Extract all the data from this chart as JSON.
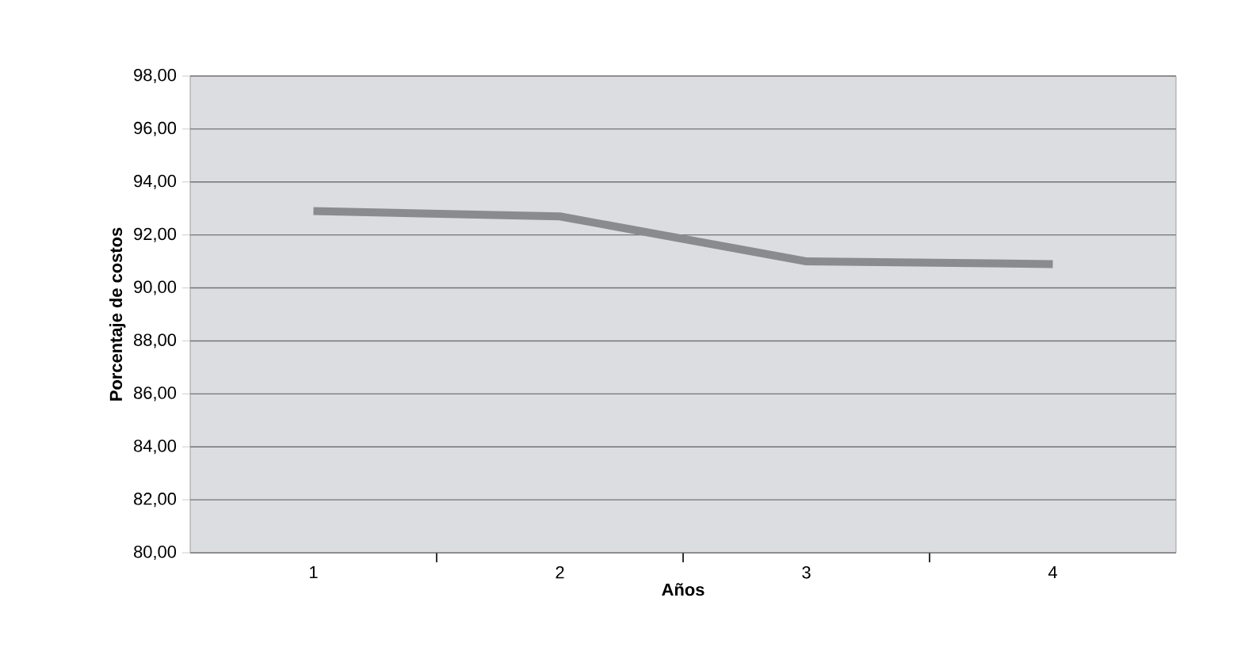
{
  "chart_data": {
    "type": "line",
    "xlabel": "Años",
    "ylabel": "Porcentaje de costos",
    "categories": [
      "1",
      "2",
      "3",
      "4"
    ],
    "series": [
      {
        "color": "#8a8b8e",
        "values": [
          92.9,
          92.7,
          91.0,
          90.9
        ]
      }
    ],
    "ylim": [
      80,
      98
    ],
    "yticks": [
      {
        "value": 80,
        "label": "80,00"
      },
      {
        "value": 82,
        "label": "82,00"
      },
      {
        "value": 84,
        "label": "84,00"
      },
      {
        "value": 86,
        "label": "86,00"
      },
      {
        "value": 88,
        "label": "88,00"
      },
      {
        "value": 90,
        "label": "90,00"
      },
      {
        "value": 92,
        "label": "92,00"
      },
      {
        "value": 94,
        "label": "94,00"
      },
      {
        "value": 96,
        "label": "96,00"
      },
      {
        "value": 98,
        "label": "98,00"
      }
    ],
    "grid": "y",
    "marker": "none",
    "line_style": "solid"
  }
}
